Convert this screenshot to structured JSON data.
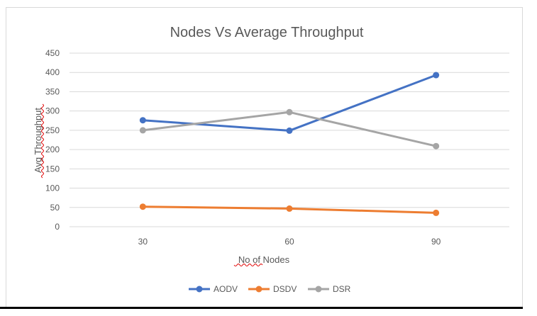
{
  "chart_data": {
    "type": "line",
    "title": "Nodes Vs Average Throughput",
    "xlabel": "No of Nodes",
    "ylabel": "Avg Throughput",
    "categories": [
      "30",
      "60",
      "90"
    ],
    "ylim": [
      0,
      450
    ],
    "yticks": [
      0,
      50,
      100,
      150,
      200,
      250,
      300,
      350,
      400,
      450
    ],
    "grid": true,
    "legend_position": "bottom",
    "series": [
      {
        "name": "AODV",
        "color": "#4472c4",
        "values": [
          276,
          249,
          393
        ]
      },
      {
        "name": "DSDV",
        "color": "#ed7d31",
        "values": [
          52,
          47,
          36
        ]
      },
      {
        "name": "DSR",
        "color": "#a5a5a5",
        "values": [
          250,
          297,
          209
        ]
      }
    ]
  }
}
